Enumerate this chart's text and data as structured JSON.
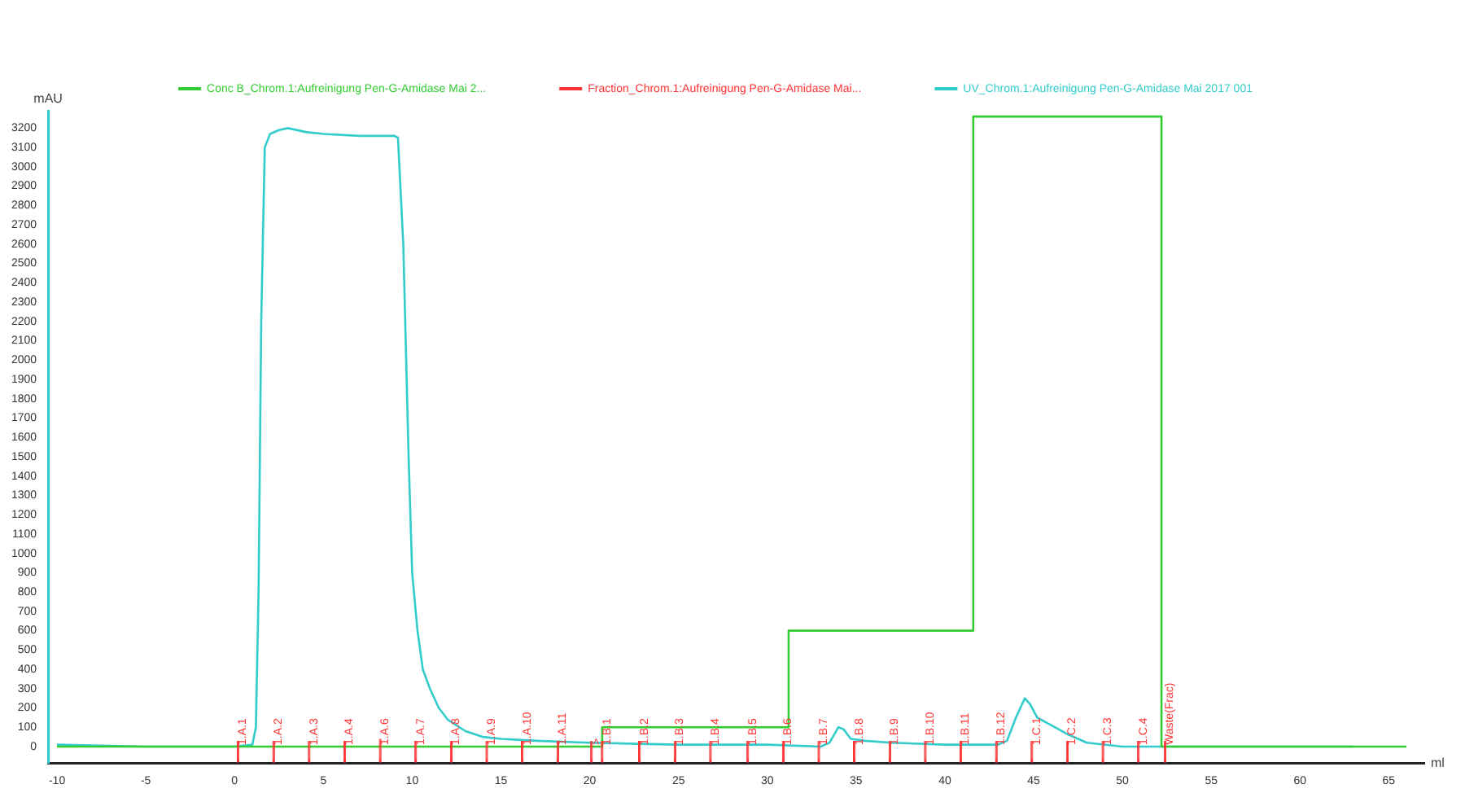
{
  "chart_data": {
    "type": "line",
    "xlabel": "ml",
    "ylabel": "mAU",
    "legend": "top",
    "grid": false,
    "marker": "none",
    "xlim": [
      -10.5,
      67
    ],
    "xticks": [
      -10,
      -5,
      0,
      5,
      10,
      15,
      20,
      25,
      30,
      35,
      40,
      45,
      50,
      55,
      60,
      65
    ],
    "ylim": [
      -85,
      3290
    ],
    "yticks": [
      0,
      100,
      200,
      300,
      400,
      500,
      600,
      700,
      800,
      900,
      1000,
      1100,
      1200,
      1300,
      1400,
      1500,
      1600,
      1700,
      1800,
      1900,
      2000,
      2100,
      2200,
      2300,
      2400,
      2500,
      2600,
      2700,
      2800,
      2900,
      3000,
      3100,
      3200
    ],
    "series": [
      {
        "name": "Conc B_Chrom.1:Aufreinigung Pen-G-Amidase Mai 2...",
        "color": "#33cc33",
        "type": "step",
        "x": [
          -10,
          20.7,
          31.2,
          41.6,
          52.2,
          66
        ],
        "values": [
          0,
          100,
          600,
          3260,
          0,
          0
        ]
      },
      {
        "name": "Fraction_Chrom.1:Aufreinigung Pen-G-Amidase Mai...",
        "color": "#ff3333",
        "type": "bar",
        "x": [
          0.2,
          2.2,
          4.2,
          6.2,
          8.2,
          10.2,
          12.2,
          14.2,
          16.2,
          18.2,
          20.1,
          20.7,
          22.8,
          24.8,
          26.8,
          28.9,
          30.9,
          32.9,
          34.9,
          36.9,
          38.9,
          40.9,
          42.9,
          44.9,
          46.9,
          48.9,
          50.9,
          52.4
        ],
        "base": [
          -80,
          -80,
          -80,
          -80,
          -80,
          -80,
          -80,
          -80,
          -80,
          -80,
          -80,
          -80,
          -80,
          -80,
          -80,
          -80,
          -80,
          -80,
          -80,
          -80,
          -80,
          -80,
          -80,
          -80,
          -80,
          -80,
          -80,
          -80
        ],
        "values": [
          110,
          110,
          110,
          110,
          120,
          110,
          110,
          110,
          110,
          110,
          110,
          110,
          110,
          110,
          110,
          110,
          110,
          110,
          110,
          110,
          110,
          110,
          110,
          110,
          110,
          110,
          110,
          110
        ]
      },
      {
        "name": "UV_Chrom.1:Aufreinigung Pen-G-Amidase Mai 2017 001",
        "color": "#33cccc",
        "x": [
          -10,
          -5,
          0,
          1,
          1.2,
          1.35,
          1.5,
          1.7,
          2,
          2.5,
          3,
          4,
          5,
          7,
          9,
          9.2,
          9.5,
          9.8,
          10,
          10.3,
          10.6,
          11,
          11.5,
          12,
          13,
          14,
          15,
          17,
          20,
          25,
          30,
          33,
          33.5,
          34,
          34.3,
          34.7,
          35.5,
          37,
          40,
          43,
          43.5,
          44,
          44.5,
          44.8,
          45.2,
          46,
          47,
          48,
          50,
          52,
          63
        ],
        "values": [
          10,
          0,
          0,
          10,
          100,
          800,
          2200,
          3100,
          3170,
          3190,
          3200,
          3180,
          3170,
          3160,
          3160,
          3150,
          2600,
          1500,
          900,
          600,
          400,
          300,
          200,
          140,
          80,
          50,
          40,
          30,
          20,
          10,
          10,
          0,
          20,
          100,
          90,
          40,
          30,
          20,
          10,
          10,
          30,
          150,
          250,
          220,
          150,
          110,
          60,
          20,
          0,
          0,
          0
        ]
      }
    ],
    "annotations": [
      {
        "text": "1.A.1",
        "x": 0.2,
        "y": 0
      },
      {
        "text": "1.A.2",
        "x": 2.2,
        "y": 0
      },
      {
        "text": "1.A.3",
        "x": 4.2,
        "y": 0
      },
      {
        "text": "1.A.4",
        "x": 6.2,
        "y": 0
      },
      {
        "text": "1.A.6",
        "x": 8.2,
        "y": 0
      },
      {
        "text": "1.A.7",
        "x": 10.2,
        "y": 0
      },
      {
        "text": "1.A.8",
        "x": 12.2,
        "y": 0
      },
      {
        "text": "1.A.9",
        "x": 14.2,
        "y": 0
      },
      {
        "text": "1.A.10",
        "x": 16.2,
        "y": 0
      },
      {
        "text": "1.A.11",
        "x": 18.2,
        "y": 0
      },
      {
        "text": ">",
        "x": 20.1,
        "y": 0
      },
      {
        "text": "1.B.1",
        "x": 20.7,
        "y": 0
      },
      {
        "text": "1.B.2",
        "x": 22.8,
        "y": 0
      },
      {
        "text": "1.B.3",
        "x": 24.8,
        "y": 0
      },
      {
        "text": "1.B.4",
        "x": 26.8,
        "y": 0
      },
      {
        "text": "1.B.5",
        "x": 28.9,
        "y": 0
      },
      {
        "text": "1.B.6",
        "x": 30.9,
        "y": 0
      },
      {
        "text": "1.B.7",
        "x": 32.9,
        "y": 0
      },
      {
        "text": "1.B.8",
        "x": 34.9,
        "y": 0
      },
      {
        "text": "1.B.9",
        "x": 36.9,
        "y": 0
      },
      {
        "text": "1.B.10",
        "x": 38.9,
        "y": 0
      },
      {
        "text": "1.B.11",
        "x": 40.9,
        "y": 0
      },
      {
        "text": "1.B.12",
        "x": 42.9,
        "y": 0
      },
      {
        "text": "1.C.1",
        "x": 44.9,
        "y": 0
      },
      {
        "text": "1.C.2",
        "x": 46.9,
        "y": 0
      },
      {
        "text": "1.C.3",
        "x": 48.9,
        "y": 0
      },
      {
        "text": "1.C.4",
        "x": 50.9,
        "y": 0
      },
      {
        "text": "Waste(Frac)",
        "x": 52.4,
        "y": 0
      }
    ]
  }
}
